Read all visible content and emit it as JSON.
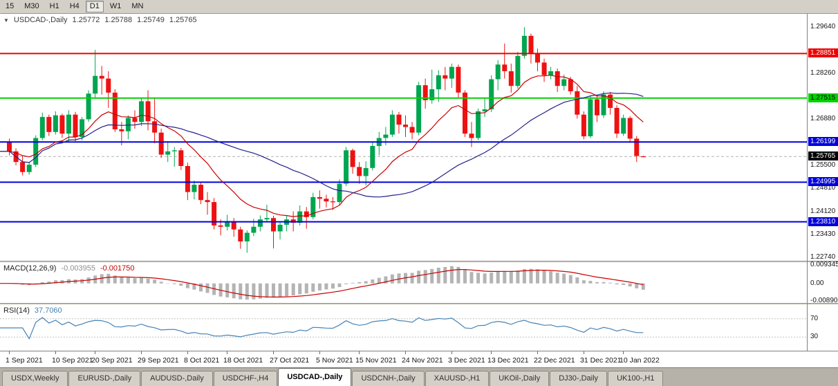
{
  "toolbar": {
    "timeframes": [
      "15",
      "M30",
      "H1",
      "H4",
      "D1",
      "W1",
      "MN"
    ],
    "active": "D1"
  },
  "chart": {
    "header": {
      "marker": "▼",
      "symbol": "USDCAD-,Daily",
      "open": "1.25772",
      "high": "1.25788",
      "low": "1.25749",
      "close": "1.25765"
    }
  },
  "chart_data": {
    "type": "candlestick",
    "symbol": "USDCAD-,Daily",
    "price": {
      "scale": {
        "max": 1.3004,
        "min": 1.2264
      },
      "axis_ticks": [
        "1.29640",
        "1.28260",
        "1.26880",
        "1.25500",
        "1.24810",
        "1.24120",
        "1.23430",
        "1.22740"
      ],
      "hlines": [
        {
          "label": "1.28851",
          "color": "#ee0000",
          "text_color": "#ffffff",
          "width": 2
        },
        {
          "label": "1.27515",
          "color": "#00d200",
          "text_color": "#000000",
          "width": 2
        },
        {
          "label": "1.26199",
          "color": "#0000dc",
          "text_color": "#ffffff",
          "width": 2
        },
        {
          "label": "1.24995",
          "color": "#0000dc",
          "text_color": "#ffffff",
          "width": 2
        },
        {
          "label": "1.23810",
          "color": "#0000dc",
          "text_color": "#ffffff",
          "width": 2
        }
      ],
      "current": {
        "label": "1.25765",
        "line_color": "#b0b0b0",
        "tag_bg": "#000000",
        "tag_text": "#ffffff"
      },
      "colors": {
        "up": "#00a550",
        "down": "#ee1111",
        "ma_fast": "#c80000",
        "ma_slow": "#20208c"
      },
      "overlays": [
        {
          "name": "ma-fast",
          "color": "#c80000"
        },
        {
          "name": "ma-slow",
          "color": "#20208c"
        }
      ],
      "candles": [
        [
          1.262,
          1.263,
          1.258,
          1.2592
        ],
        [
          1.2592,
          1.2601,
          1.255,
          1.256
        ],
        [
          1.256,
          1.2578,
          1.252,
          1.253
        ],
        [
          1.253,
          1.256,
          1.2522,
          1.2552
        ],
        [
          1.2552,
          1.264,
          1.2545,
          1.2632
        ],
        [
          1.2632,
          1.2708,
          1.2625,
          1.2695
        ],
        [
          1.2695,
          1.2702,
          1.2638,
          1.265
        ],
        [
          1.265,
          1.2712,
          1.2642,
          1.27
        ],
        [
          1.27,
          1.2705,
          1.2632,
          1.2645
        ],
        [
          1.2645,
          1.2715,
          1.2618,
          1.2702
        ],
        [
          1.2702,
          1.271,
          1.2622,
          1.2635
        ],
        [
          1.2635,
          1.2695,
          1.2625,
          1.2688
        ],
        [
          1.2688,
          1.2775,
          1.268,
          1.2765
        ],
        [
          1.2765,
          1.2896,
          1.275,
          1.2818
        ],
        [
          1.2818,
          1.2848,
          1.2762,
          1.281
        ],
        [
          1.281,
          1.2832,
          1.2722,
          1.2768
        ],
        [
          1.2768,
          1.2778,
          1.265,
          1.2658
        ],
        [
          1.2658,
          1.268,
          1.261,
          1.2652
        ],
        [
          1.2652,
          1.27,
          1.2628,
          1.2692
        ],
        [
          1.2692,
          1.2715,
          1.266,
          1.268
        ],
        [
          1.268,
          1.2752,
          1.2668,
          1.2742
        ],
        [
          1.2742,
          1.2775,
          1.2655,
          1.2682
        ],
        [
          1.2682,
          1.275,
          1.2616,
          1.2648
        ],
        [
          1.2648,
          1.266,
          1.2572,
          1.2582
        ],
        [
          1.2582,
          1.2622,
          1.256,
          1.2592
        ],
        [
          1.2592,
          1.2605,
          1.2546,
          1.2595
        ],
        [
          1.2595,
          1.2602,
          1.2536,
          1.2548
        ],
        [
          1.2548,
          1.2558,
          1.2446,
          1.247
        ],
        [
          1.247,
          1.2504,
          1.2448,
          1.2492
        ],
        [
          1.2492,
          1.25,
          1.2434,
          1.2446
        ],
        [
          1.2446,
          1.247,
          1.2402,
          1.244
        ],
        [
          1.244,
          1.2452,
          1.2358,
          1.237
        ],
        [
          1.237,
          1.2388,
          1.234,
          1.2366
        ],
        [
          1.2366,
          1.2402,
          1.2355,
          1.2382
        ],
        [
          1.2382,
          1.2392,
          1.2336,
          1.2358
        ],
        [
          1.2358,
          1.2366,
          1.23,
          1.2322
        ],
        [
          1.2322,
          1.2355,
          1.2288,
          1.2348
        ],
        [
          1.2348,
          1.239,
          1.2338,
          1.2366
        ],
        [
          1.2366,
          1.24,
          1.2352,
          1.2388
        ],
        [
          1.2388,
          1.2432,
          1.238,
          1.2392
        ],
        [
          1.2392,
          1.2399,
          1.2301,
          1.2352
        ],
        [
          1.2352,
          1.2382,
          1.2328,
          1.2372
        ],
        [
          1.2372,
          1.24,
          1.2352,
          1.2388
        ],
        [
          1.2388,
          1.2412,
          1.2352,
          1.2378
        ],
        [
          1.2378,
          1.243,
          1.237,
          1.2412
        ],
        [
          1.2412,
          1.2425,
          1.236,
          1.2395
        ],
        [
          1.2395,
          1.2468,
          1.2388,
          1.2455
        ],
        [
          1.2455,
          1.2475,
          1.242,
          1.245
        ],
        [
          1.245,
          1.2462,
          1.2424,
          1.2442
        ],
        [
          1.2442,
          1.2455,
          1.2416,
          1.244
        ],
        [
          1.244,
          1.2508,
          1.2432,
          1.2495
        ],
        [
          1.2495,
          1.2605,
          1.2488,
          1.2595
        ],
        [
          1.2595,
          1.26,
          1.2525,
          1.2545
        ],
        [
          1.2545,
          1.256,
          1.2495,
          1.2518
        ],
        [
          1.2518,
          1.2562,
          1.249,
          1.2542
        ],
        [
          1.2542,
          1.262,
          1.2535,
          1.2608
        ],
        [
          1.2608,
          1.265,
          1.258,
          1.2632
        ],
        [
          1.2632,
          1.2665,
          1.261,
          1.2642
        ],
        [
          1.2642,
          1.2715,
          1.2635,
          1.2702
        ],
        [
          1.2702,
          1.271,
          1.2645,
          1.2672
        ],
        [
          1.2672,
          1.27,
          1.2635,
          1.2665
        ],
        [
          1.2665,
          1.268,
          1.2628,
          1.2648
        ],
        [
          1.2648,
          1.28,
          1.264,
          1.279
        ],
        [
          1.279,
          1.281,
          1.272,
          1.2745
        ],
        [
          1.2745,
          1.2837,
          1.2735,
          1.2778
        ],
        [
          1.2778,
          1.2835,
          1.274,
          1.282
        ],
        [
          1.282,
          1.2845,
          1.2775,
          1.281
        ],
        [
          1.281,
          1.2855,
          1.2782,
          1.2845
        ],
        [
          1.2845,
          1.2852,
          1.2752,
          1.2768
        ],
        [
          1.2768,
          1.2775,
          1.2635,
          1.2645
        ],
        [
          1.2645,
          1.268,
          1.2605,
          1.2632
        ],
        [
          1.2632,
          1.272,
          1.2625,
          1.2712
        ],
        [
          1.2712,
          1.275,
          1.2695,
          1.2718
        ],
        [
          1.2718,
          1.282,
          1.271,
          1.2808
        ],
        [
          1.2808,
          1.2865,
          1.2775,
          1.2852
        ],
        [
          1.2852,
          1.2915,
          1.281,
          1.2832
        ],
        [
          1.2832,
          1.2855,
          1.2768,
          1.2788
        ],
        [
          1.2788,
          1.289,
          1.278,
          1.2878
        ],
        [
          1.2878,
          1.2964,
          1.287,
          1.2938
        ],
        [
          1.2938,
          1.2945,
          1.2855,
          1.2885
        ],
        [
          1.2885,
          1.29,
          1.2832,
          1.2858
        ],
        [
          1.2858,
          1.287,
          1.28,
          1.282
        ],
        [
          1.282,
          1.2845,
          1.2808,
          1.2832
        ],
        [
          1.2832,
          1.284,
          1.277,
          1.2788
        ],
        [
          1.2788,
          1.2822,
          1.2775,
          1.2808
        ],
        [
          1.2808,
          1.2815,
          1.2762,
          1.2772
        ],
        [
          1.2772,
          1.2788,
          1.269,
          1.2702
        ],
        [
          1.2702,
          1.2712,
          1.2628,
          1.2637
        ],
        [
          1.2637,
          1.2758,
          1.2632,
          1.2748
        ],
        [
          1.2748,
          1.276,
          1.268,
          1.27
        ],
        [
          1.27,
          1.2772,
          1.2692,
          1.2762
        ],
        [
          1.2762,
          1.277,
          1.2702,
          1.2722
        ],
        [
          1.2722,
          1.273,
          1.2632,
          1.2645
        ],
        [
          1.2645,
          1.2702,
          1.2638,
          1.2692
        ],
        [
          1.2692,
          1.2697,
          1.2618,
          1.263
        ],
        [
          1.263,
          1.2638,
          1.256,
          1.2578
        ],
        [
          1.25772,
          1.25788,
          1.25749,
          1.25765
        ]
      ]
    },
    "macd": {
      "label": "MACD(12,26,9)",
      "values": [
        "-0.003955",
        "-0.001750"
      ],
      "axis": [
        "0.009345",
        "0.00",
        "-0.008902"
      ],
      "scale": {
        "max": 0.0105,
        "min": -0.01
      },
      "colors": {
        "hist": "#b4b4b4",
        "signal": "#c80000"
      }
    },
    "rsi": {
      "label": "RSI(14)",
      "value": "37.7060",
      "levels": [
        70,
        30
      ],
      "levels_color": "#c0c0c0",
      "scale": {
        "max": 100,
        "min": 0
      },
      "color": "#4682b4"
    },
    "time_axis": {
      "labels": [
        {
          "i": 0,
          "label": "1 Sep 2021"
        },
        {
          "i": 7,
          "label": "10 Sep 2021"
        },
        {
          "i": 13,
          "label": "20 Sep 2021"
        },
        {
          "i": 20,
          "label": "29 Sep 2021"
        },
        {
          "i": 27,
          "label": "8 Oct 2021"
        },
        {
          "i": 33,
          "label": "18 Oct 2021"
        },
        {
          "i": 40,
          "label": "27 Oct 2021"
        },
        {
          "i": 47,
          "label": "5 Nov 2021"
        },
        {
          "i": 53,
          "label": "15 Nov 2021"
        },
        {
          "i": 60,
          "label": "24 Nov 2021"
        },
        {
          "i": 67,
          "label": "3 Dec 2021"
        },
        {
          "i": 73,
          "label": "13 Dec 2021"
        },
        {
          "i": 80,
          "label": "22 Dec 2021"
        },
        {
          "i": 87,
          "label": "31 Dec 2021"
        },
        {
          "i": 93,
          "label": "10 Jan 2022"
        }
      ]
    }
  },
  "tabs": [
    {
      "label": "USDX,Weekly",
      "active": false
    },
    {
      "label": "EURUSD-,Daily",
      "active": false
    },
    {
      "label": "AUDUSD-,Daily",
      "active": false
    },
    {
      "label": "USDCHF-,H4",
      "active": false
    },
    {
      "label": "USDCAD-,Daily",
      "active": true
    },
    {
      "label": "USDCNH-,Daily",
      "active": false
    },
    {
      "label": "XAUUSD-,H1",
      "active": false
    },
    {
      "label": "UKOil-,Daily",
      "active": false
    },
    {
      "label": "DJ30-,Daily",
      "active": false
    },
    {
      "label": "UK100-,H1",
      "active": false
    }
  ]
}
